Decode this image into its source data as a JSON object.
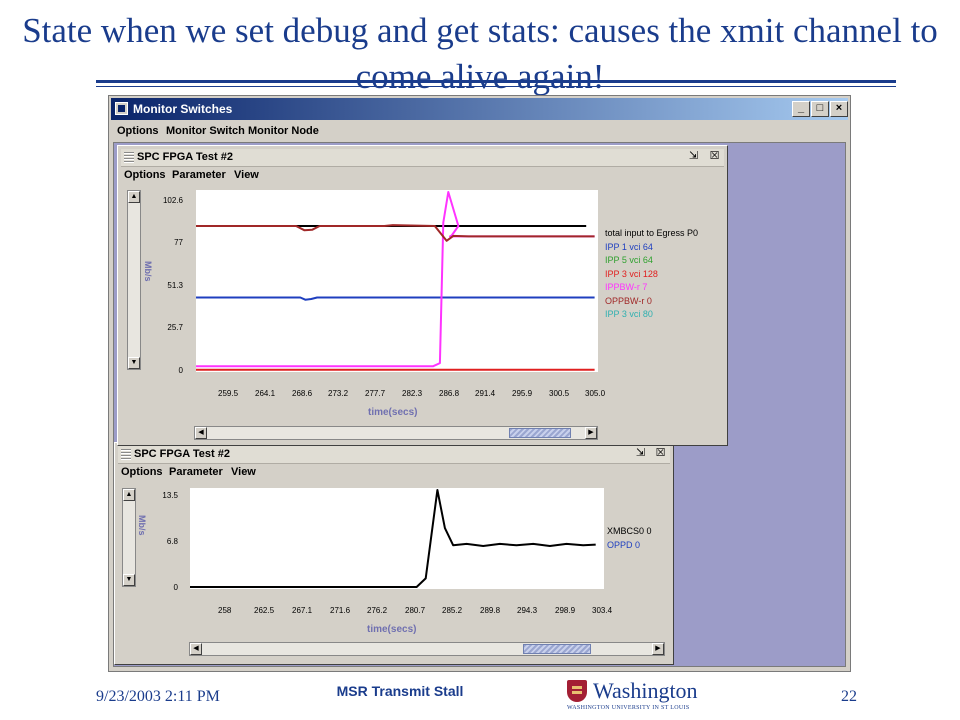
{
  "slide": {
    "title": "State when we set debug and get stats: causes the xmit channel to come alive again!",
    "footer_date": "9/23/2003 2:11 PM",
    "footer_center": "MSR Transmit Stall",
    "logo_word": "Washington",
    "logo_sub": "WASHINGTON UNIVERSITY IN ST LOUIS",
    "page_number": "22"
  },
  "window": {
    "title": "Monitor Switches",
    "menu": [
      "Options",
      "Monitor Switch",
      "Monitor Node"
    ],
    "controls": [
      "_",
      "□",
      "×"
    ]
  },
  "colors": {
    "title_blue": "#1a3c8c",
    "desktop": "#9c9cc8",
    "black": "#000000",
    "blue": "#1f3fbf",
    "green": "#2ea02e",
    "red": "#e02020",
    "magenta": "#ff33ff",
    "brown": "#a02828",
    "teal": "#30b0b0"
  },
  "top_panel": {
    "title": "SPC FPGA Test #2",
    "menu": [
      "Options",
      "Parameter",
      "View"
    ],
    "controls": [
      "⇲",
      "☒"
    ],
    "scroll_up": "▲",
    "scroll_down": "▼",
    "scroll_left": "◀",
    "scroll_right": "▶"
  },
  "bottom_panel": {
    "title": "SPC FPGA Test #2",
    "menu": [
      "Options",
      "Parameter",
      "View"
    ],
    "controls": [
      "⇲",
      "☒"
    ],
    "scroll_up": "▲",
    "scroll_down": "▼",
    "scroll_left": "◀",
    "scroll_right": "▶"
  },
  "chart_data": [
    {
      "type": "line",
      "title": "",
      "xlabel": "time(secs)",
      "ylabel": "Mb/s",
      "ylim": [
        0,
        102.6
      ],
      "xlim": [
        257.6,
        305.4
      ],
      "y_ticks": [
        "102.6",
        "77",
        "51.3",
        "25.7",
        "0"
      ],
      "x_ticks": [
        "259.5",
        "264.1",
        "268.6",
        "273.2",
        "277.7",
        "282.3",
        "286.8",
        "291.4",
        "295.9",
        "300.5",
        "305.0"
      ],
      "legend_position": "right",
      "legend": [
        {
          "label": "total input to Egress P0",
          "color": "#000000"
        },
        {
          "label": "IPP 1 vci 64",
          "color": "#1f3fbf"
        },
        {
          "label": "IPP 5 vci 64",
          "color": "#2ea02e"
        },
        {
          "label": "IPP 3 vci 128",
          "color": "#e02020"
        },
        {
          "label": "IPPBW-r 7",
          "color": "#ff33ff"
        },
        {
          "label": "OPPBW-r 0",
          "color": "#a02828"
        },
        {
          "label": "IPP 3 vci 80",
          "color": "#30b0b0"
        }
      ],
      "series": [
        {
          "name": "total input to Egress P0",
          "color": "#000000",
          "x": [
            257.6,
            286.0,
            286.8,
            287.2,
            304.0
          ],
          "y": [
            83,
            83,
            83,
            83,
            83
          ]
        },
        {
          "name": "IPP 1 vci 64",
          "color": "#1f3fbf",
          "x": [
            257.6,
            270.0,
            270.6,
            271.3,
            272.0,
            305.0
          ],
          "y": [
            41.8,
            41.8,
            40.5,
            40.9,
            41.8,
            41.8
          ]
        },
        {
          "name": "IPP 3 vci 128",
          "color": "#e02020",
          "x": [
            257.6,
            305.0
          ],
          "y": [
            0.2,
            0.2
          ]
        },
        {
          "name": "IPPBW-r 7",
          "color": "#ff33ff",
          "x": [
            257.6,
            285.8,
            286.6,
            287.0,
            287.6,
            288.8,
            288.0,
            287.8,
            305.0
          ],
          "y": [
            2.2,
            2.2,
            4,
            85,
            102.6,
            83,
            77.5,
            77,
            77
          ]
        },
        {
          "name": "OPPBW-r 0",
          "color": "#a02828",
          "x": [
            257.6,
            269.5,
            270.5,
            271.4,
            272.3,
            280.0,
            281.0,
            286.0,
            287.4,
            288.2,
            290.0,
            305.0
          ],
          "y": [
            83,
            83,
            80.5,
            80.8,
            83,
            83,
            83.5,
            83,
            74.5,
            77.3,
            77,
            77
          ]
        }
      ]
    },
    {
      "type": "line",
      "title": "",
      "xlabel": "time(secs)",
      "ylabel": "Mb/s",
      "ylim": [
        0,
        13.5
      ],
      "xlim": [
        255.8,
        305.5
      ],
      "y_ticks": [
        "13.5",
        "6.8",
        "0"
      ],
      "x_ticks": [
        "258",
        "262.5",
        "267.1",
        "271.6",
        "276.2",
        "280.7",
        "285.2",
        "289.8",
        "294.3",
        "298.9",
        "303.4"
      ],
      "legend_position": "right",
      "legend": [
        {
          "label": "XMBCS0 0",
          "color": "#000000"
        },
        {
          "label": "OPPD 0",
          "color": "#1f3fbf"
        }
      ],
      "series": [
        {
          "name": "XMBCS0 0",
          "color": "#000000",
          "x": [
            255.8,
            283.0,
            284.1,
            285.5,
            286.4,
            287.4,
            289,
            291,
            293,
            295,
            297,
            299,
            301,
            303,
            304.5
          ],
          "y": [
            0,
            0,
            1.2,
            13.5,
            8.2,
            5.8,
            6.0,
            5.7,
            6.0,
            5.8,
            6.0,
            5.7,
            6.0,
            5.8,
            5.9
          ]
        }
      ]
    }
  ]
}
